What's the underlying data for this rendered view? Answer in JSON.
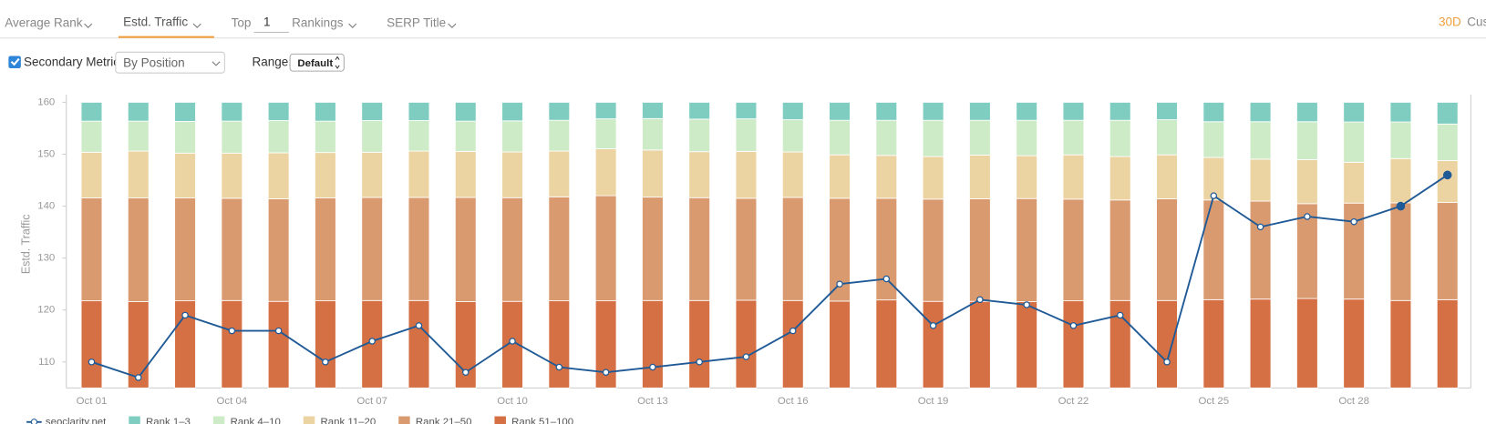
{
  "toolbar": {
    "tabs": [
      "Average Rank",
      "Estd. Traffic",
      "Top",
      "Rankings",
      "SERP Title"
    ],
    "top_value": "1",
    "period": "30D",
    "custom": "Cus"
  },
  "options": {
    "secondary_metric": "Secondary Metric",
    "by": "By Position",
    "range_label": "Range:",
    "range": "Default"
  },
  "chart_data": {
    "type": "bar",
    "ylabel": "Estd. Traffic",
    "categories": [
      "Oct 01",
      null,
      null,
      "Oct 04",
      null,
      null,
      "Oct 07",
      null,
      null,
      "Oct 10",
      null,
      null,
      "Oct 13",
      null,
      null,
      "Oct 16",
      null,
      null,
      "Oct 19",
      null,
      null,
      "Oct 22",
      null,
      null,
      "Oct 25",
      null,
      null,
      "Oct 28",
      null,
      null
    ],
    "ylim": [
      105,
      160
    ],
    "yticks": [
      110,
      120,
      130,
      140,
      150,
      160
    ],
    "y2lim": [
      0,
      100
    ],
    "stacked": true,
    "series": [
      {
        "name": "seoclarity.net",
        "type": "line",
        "axis": "y",
        "color": "#1f5a96",
        "values": [
          110,
          107,
          119,
          116,
          116,
          110,
          114,
          117,
          108,
          114,
          109,
          108,
          109,
          110,
          111,
          116,
          125,
          126,
          117,
          122,
          121,
          117,
          119,
          110,
          142,
          136,
          138,
          137,
          140,
          146
        ]
      },
      {
        "name": "Rank 1–3",
        "axis": "y2",
        "color": "#7ecdc0",
        "values": [
          6.6,
          6.6,
          6.7,
          6.6,
          6.4,
          6.6,
          6.4,
          6.4,
          6.6,
          6.5,
          6.3,
          5.8,
          5.7,
          5.9,
          5.8,
          6.1,
          6.3,
          6.3,
          6.3,
          6.3,
          6.3,
          6.3,
          6.3,
          6.1,
          6.8,
          6.8,
          6.8,
          6.9,
          6.9,
          7.6
        ]
      },
      {
        "name": "Rank 4–10",
        "axis": "y2",
        "color": "#cdebc7",
        "values": [
          10.9,
          10.5,
          11.1,
          11.2,
          11.3,
          11.0,
          11.1,
          10.7,
          10.6,
          10.9,
          10.8,
          10.5,
          11.0,
          11.4,
          11.4,
          11.3,
          12.1,
          12.3,
          12.7,
          12.2,
          12.4,
          12.1,
          12.7,
          12.3,
          12.5,
          13.1,
          13.3,
          14.1,
          12.8,
          12.8
        ]
      },
      {
        "name": "Rank 11–20",
        "axis": "y2",
        "color": "#ecd3a2",
        "values": [
          16.0,
          16.4,
          15.7,
          15.8,
          16.1,
          15.9,
          15.8,
          16.2,
          16.1,
          16.0,
          16.0,
          16.4,
          16.5,
          16.1,
          16.4,
          15.9,
          15.2,
          15.0,
          14.9,
          15.3,
          15.0,
          15.5,
          15.2,
          15.4,
          14.9,
          14.7,
          15.4,
          14.3,
          15.5,
          14.7
        ]
      },
      {
        "name": "Rank 21–50",
        "axis": "y2",
        "color": "#d99a70",
        "values": [
          36.0,
          36.3,
          36.0,
          35.8,
          35.9,
          36.0,
          36.1,
          36.1,
          36.5,
          36.3,
          36.4,
          36.8,
          36.2,
          36.0,
          35.7,
          36.1,
          36.0,
          35.6,
          35.8,
          35.9,
          36.1,
          35.6,
          35.2,
          35.6,
          34.9,
          34.3,
          33.2,
          33.6,
          34.2,
          34.0
        ]
      },
      {
        "name": "Rank 51–100",
        "axis": "y2",
        "color": "#d57044",
        "values": [
          30.5,
          30.2,
          30.5,
          30.6,
          30.3,
          30.5,
          30.6,
          30.6,
          30.2,
          30.3,
          30.5,
          30.5,
          30.6,
          30.6,
          30.7,
          30.6,
          30.4,
          30.8,
          30.3,
          30.3,
          30.2,
          30.5,
          30.6,
          30.6,
          30.9,
          31.1,
          31.3,
          31.1,
          30.6,
          30.9
        ]
      }
    ]
  }
}
